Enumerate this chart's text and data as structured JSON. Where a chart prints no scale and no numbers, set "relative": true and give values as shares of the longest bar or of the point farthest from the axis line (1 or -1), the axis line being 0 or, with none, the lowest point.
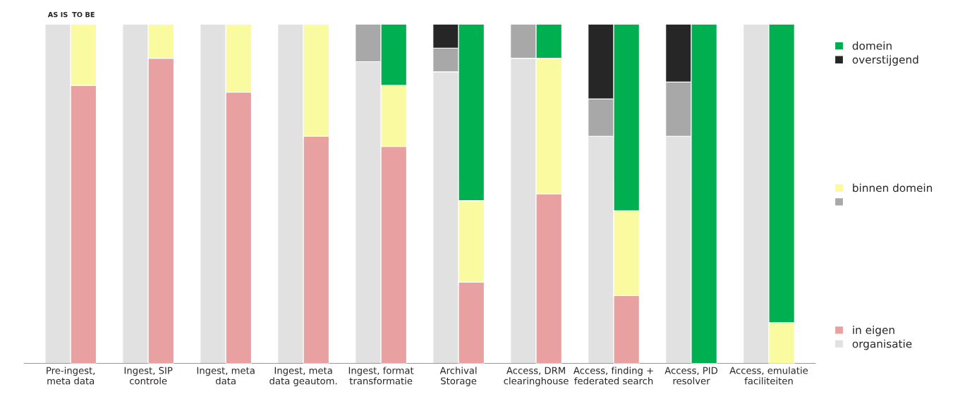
{
  "chart_data": [
    {
      "type": "bar",
      "stacked": true,
      "relative": true,
      "legend": "right",
      "categories": [
        "Pre-ingest,\nmeta data",
        "Ingest, SIP\ncontrole",
        "Ingest, meta\ndata",
        "Ingest, meta\ndata geautom.",
        "Ingest, format\ntransformatie",
        "Archival\nStorage",
        "Access, DRM\nclearinghouse",
        "Access, finding +\nfederated search",
        "Access, PID\nresolver",
        "Access, emulatie\nfaciliteiten"
      ],
      "annotations": [
        "AS IS"
      ],
      "series": [
        {
          "name": "organisatie",
          "color": "#e1e1e1",
          "values": [
            1,
            1,
            1,
            1,
            0.89,
            0.86,
            0.9,
            0.67,
            0.67,
            1
          ]
        },
        {
          "color": "#a8a8a8",
          "values": [
            null,
            null,
            null,
            null,
            0.11,
            0.07,
            0.1,
            0.11,
            0.16,
            null
          ]
        },
        {
          "name": "overstijgend",
          "color": "#262626",
          "values": [
            null,
            null,
            null,
            null,
            null,
            0.07,
            null,
            0.22,
            0.17,
            null
          ]
        }
      ]
    },
    {
      "type": "bar",
      "stacked": true,
      "relative": true,
      "legend": "right",
      "categories": [
        null,
        null,
        null,
        null,
        null,
        null,
        null,
        null,
        null,
        null
      ],
      "annotations": [
        "TO BE"
      ],
      "series": [
        {
          "name": "in eigen",
          "color": "#e8a0a0",
          "values": [
            0.82,
            0.9,
            0.8,
            0.67,
            0.64,
            0.24,
            0.5,
            0.2,
            null,
            null
          ]
        },
        {
          "name": "binnen domein",
          "color": "#fafaa0",
          "values": [
            0.18,
            0.1,
            0.2,
            0.33,
            0.18,
            0.24,
            0.4,
            0.25,
            null,
            0.12
          ]
        },
        {
          "name": "domein",
          "color": "#00b050",
          "values": [
            null,
            null,
            null,
            null,
            0.18,
            0.52,
            0.1,
            0.55,
            1,
            0.88
          ]
        }
      ]
    }
  ]
}
